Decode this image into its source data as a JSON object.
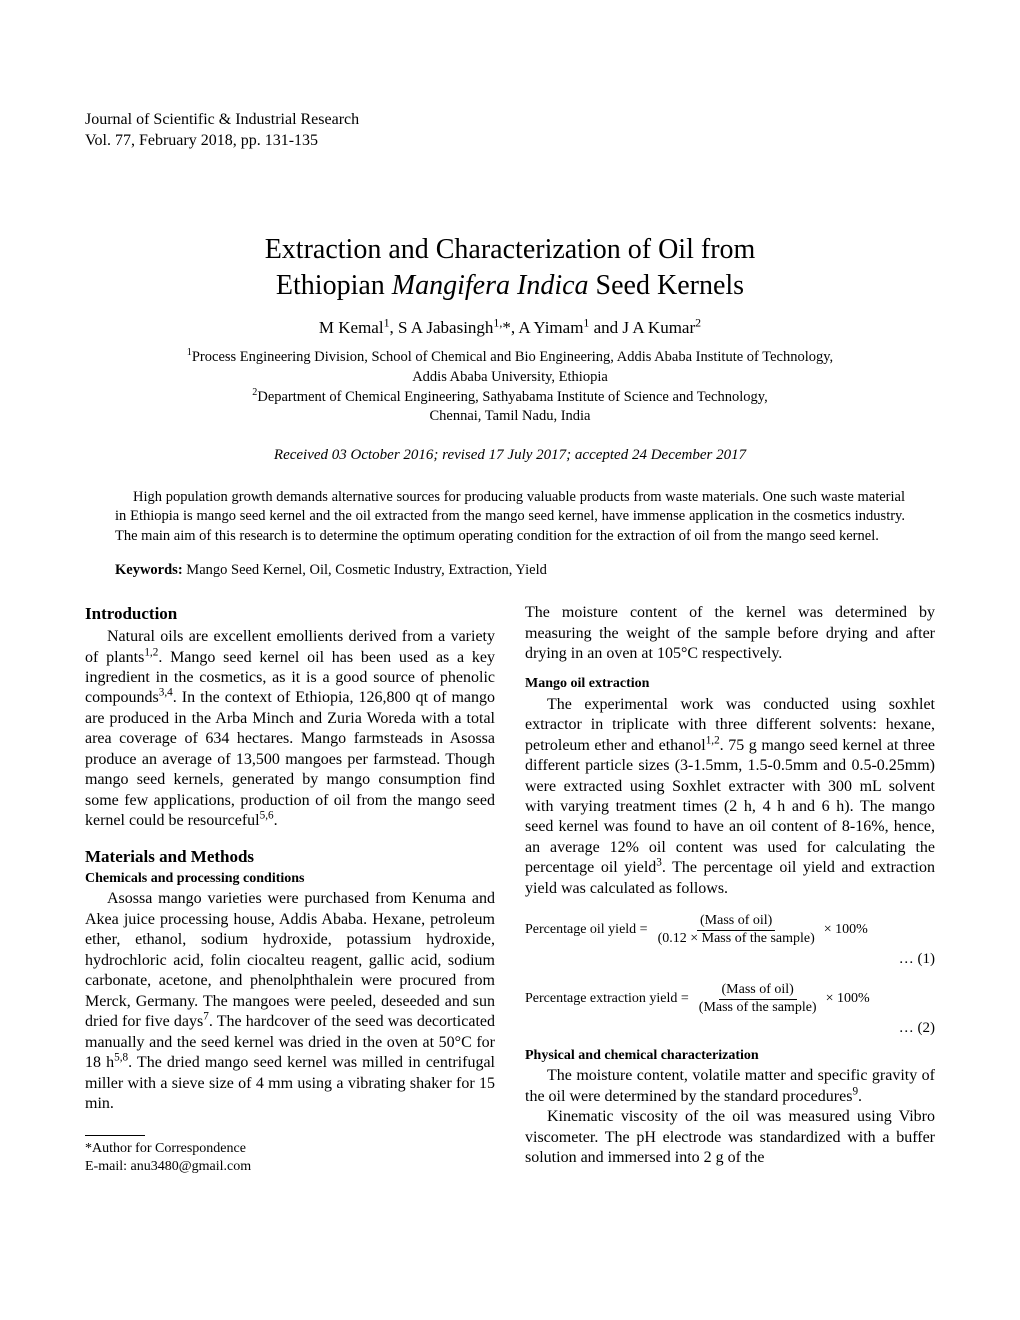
{
  "journal": {
    "name": "Journal of Scientific & Industrial Research",
    "vol_line": "Vol. 77, February 2018, pp. 131-135"
  },
  "title_line1": "Extraction and Characterization of Oil from",
  "title_line2_plain": "Ethiopian ",
  "title_line2_italic": "Mangifera Indica",
  "title_line2_tail": " Seed Kernels",
  "authors_html": "M Kemal<span class=\"sup\">1</span>, S A Jabasingh<span class=\"sup\">1,</span>*, A Yimam<span class=\"sup\">1</span> and J A Kumar<span class=\"sup\">2</span>",
  "affils": [
    "<span class=\"sup\">1</span>Process Engineering Division, School of Chemical and Bio Engineering, Addis Ababa Institute of Technology,",
    "Addis Ababa University, Ethiopia",
    "<span class=\"sup\">2</span>Department of Chemical Engineering, Sathyabama Institute of Science and Technology,",
    "Chennai, Tamil Nadu, India"
  ],
  "dates": "Received 03 October 2016; revised 17 July 2017; accepted 24 December 2017",
  "abstract": "High population growth demands alternative sources for producing valuable products from waste materials. One such waste material in Ethiopia is mango seed kernel and the oil extracted from the mango seed kernel, have immense application in the cosmetics industry. The main aim of this research is to determine the optimum operating condition for the extraction of oil from the mango seed kernel.",
  "keywords_label": "Keywords:",
  "keywords": " Mango Seed Kernel, Oil, Cosmetic Industry, Extraction, Yield",
  "left": {
    "h_intro": "Introduction",
    "intro_html": "Natural oils are excellent emollients derived from a variety of plants<span class=\"sup\">1,2</span>. Mango seed kernel oil has been used as a key ingredient in the cosmetics, as it is a good source of phenolic compounds<span class=\"sup\">3,4</span>. In the context of Ethiopia, 126,800 qt of mango are produced in the Arba Minch and Zuria Woreda with a total area coverage of 634 hectares. Mango farmsteads in Asossa produce an average of 13,500 mangoes per farmstead. Though mango seed kernels, generated by mango consumption find some few applications, production of oil from the mango seed kernel could be resourceful<span class=\"sup\">5,6</span>.",
    "h_mm": "Materials and Methods",
    "h_chem": "Chemicals and processing conditions",
    "chem_html": "Asossa mango varieties were purchased from Kenuma and Akea juice processing house, Addis Ababa. Hexane, petroleum ether, ethanol, sodium hydroxide, potassium hydroxide, hydrochloric acid, folin ciocalteu reagent, gallic acid, sodium carbonate, acetone, and phenolphthalein were procured from Merck, Germany. The mangoes were peeled, deseeded and sun dried for five days<span class=\"sup\">7</span>. The hardcover of the seed was decorticated manually and the seed kernel was dried in the oven at 50°C for 18 h<span class=\"sup\">5,8</span>. The dried mango seed kernel was milled in centrifugal miller with a sieve size of 4 mm using a vibrating shaker for 15 min."
  },
  "footnote": {
    "l1": "*Author for Correspondence",
    "l2": "E-mail: anu3480@gmail.com"
  },
  "right": {
    "moisture_html": "The moisture content of the kernel was determined by measuring the weight of the sample before drying and after drying in an oven at 105°C respectively.",
    "h_ext": "Mango oil extraction",
    "ext_html": "The experimental work was conducted using soxhlet extractor in triplicate with three different solvents: hexane, petroleum ether and ethanol<span class=\"sup\">1,2</span>. 75 g mango seed kernel at three different particle sizes (3-1.5mm, 1.5-0.5mm and 0.5-0.25mm) were extracted using Soxhlet extracter with 300 mL solvent with varying treatment times (2 h, 4 h and 6 h). The mango seed kernel was found to have an oil content of 8-16%, hence, an average 12% oil content was used for calculating the percentage oil yield<span class=\"sup\">3</span>. The percentage oil yield and extraction yield was calculated as follows.",
    "eq1": {
      "label": "Percentage oil yield =",
      "num": "(Mass of oil)",
      "den": "(0.12 × Mass of the sample)",
      "tail": "× 100%",
      "no": "… (1)"
    },
    "eq2": {
      "label": "Percentage extraction yield =",
      "num": "(Mass of oil)",
      "den": "(Mass of the sample)",
      "tail": "× 100%",
      "no": "… (2)"
    },
    "h_phys": "Physical and chemical characterization",
    "phys1_html": "The moisture content, volatile matter and specific gravity of the oil were determined by the standard procedures<span class=\"sup\">9</span>.",
    "phys2_html": "Kinematic viscosity of the oil was measured using Vibro viscometer. The pH electrode was standardized with a buffer solution and immersed into 2 g of the"
  }
}
